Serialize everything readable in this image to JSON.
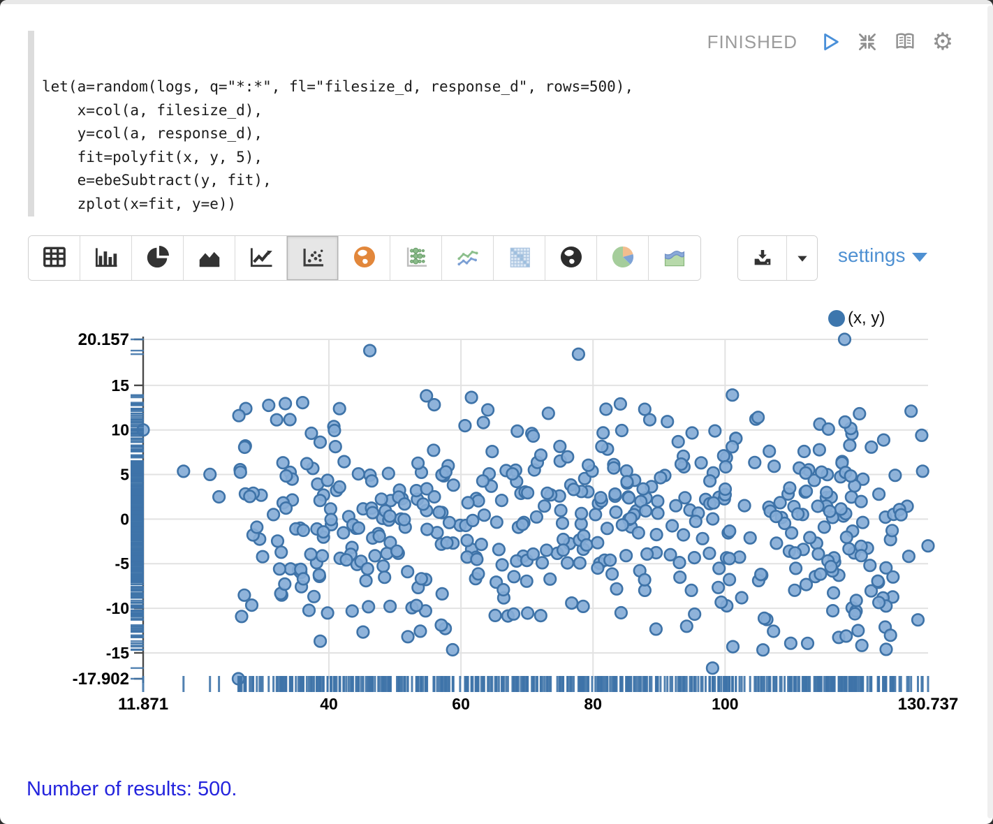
{
  "status": {
    "label": "FINISHED"
  },
  "header_icons": [
    {
      "name": "run-icon"
    },
    {
      "name": "collapse-icon"
    },
    {
      "name": "book-icon"
    },
    {
      "name": "gear-icon"
    }
  ],
  "code": {
    "text": "let(a=random(logs, q=\"*:*\", fl=\"filesize_d, response_d\", rows=500),\n    x=col(a, filesize_d),\n    y=col(a, response_d),\n    fit=polyfit(x, y, 5),\n    e=ebeSubtract(y, fit),\n    zplot(x=fit, y=e))"
  },
  "toolbar": {
    "chart_types": [
      {
        "name": "table",
        "selected": false
      },
      {
        "name": "bar",
        "selected": false
      },
      {
        "name": "pie",
        "selected": false
      },
      {
        "name": "area",
        "selected": false
      },
      {
        "name": "line",
        "selected": false
      },
      {
        "name": "scatter",
        "selected": true
      },
      {
        "name": "map-orange",
        "selected": false
      },
      {
        "name": "bubble",
        "selected": false
      },
      {
        "name": "multi-line",
        "selected": false
      },
      {
        "name": "heatmap",
        "selected": false
      },
      {
        "name": "globe-dark",
        "selected": false
      },
      {
        "name": "pie-colored",
        "selected": false
      },
      {
        "name": "area-colored",
        "selected": false
      }
    ],
    "settings_label": "settings"
  },
  "chart_data": {
    "type": "scatter",
    "title": "",
    "xlabel": "",
    "ylabel": "",
    "legend": [
      {
        "label": "(x, y)",
        "color": "#3d76ad"
      }
    ],
    "legend_position": "top-right",
    "grid": true,
    "rug": true,
    "point_count": 500,
    "xlim": [
      11.871,
      130.737
    ],
    "ylim": [
      -17.902,
      20.157
    ],
    "x_ticks": [
      {
        "v": 11.871,
        "label": "11.871",
        "bold": true,
        "grid": false
      },
      {
        "v": 40,
        "label": "40",
        "bold": false,
        "grid": true
      },
      {
        "v": 60,
        "label": "60",
        "bold": false,
        "grid": true
      },
      {
        "v": 80,
        "label": "80",
        "bold": false,
        "grid": true
      },
      {
        "v": 100,
        "label": "100",
        "bold": false,
        "grid": true
      },
      {
        "v": 130.737,
        "label": "130.737",
        "bold": true,
        "grid": false
      }
    ],
    "y_ticks": [
      {
        "v": 20.157,
        "label": "20.157",
        "bold": true,
        "grid": true
      },
      {
        "v": 15,
        "label": "15",
        "bold": false,
        "grid": true
      },
      {
        "v": 10,
        "label": "10",
        "bold": false,
        "grid": true
      },
      {
        "v": 5,
        "label": "5",
        "bold": false,
        "grid": true
      },
      {
        "v": 0,
        "label": "0",
        "bold": false,
        "grid": true
      },
      {
        "v": -5,
        "label": "-5",
        "bold": false,
        "grid": true
      },
      {
        "v": -10,
        "label": "-10",
        "bold": false,
        "grid": true
      },
      {
        "v": -15,
        "label": "-15",
        "bold": false,
        "grid": true
      },
      {
        "v": -17.902,
        "label": "-17.902",
        "bold": true,
        "grid": false
      }
    ],
    "colors": {
      "point_fill": "#85add7",
      "point_stroke": "#3e73a8",
      "rug": "#3e73a8",
      "grid": "#e2e2e2",
      "axis": "#4a4a4a",
      "label": "#000000"
    },
    "distribution": {
      "seed": 11,
      "x_main": [
        26.5,
        126.0
      ],
      "x_low_tail": [
        13.0,
        26.5
      ],
      "x_low_p": 0.012,
      "x_high_tail": [
        126.0,
        130.5
      ],
      "x_high_p": 0.012,
      "y_half_range": 15.5
    },
    "pinned_points": [
      [
        11.871,
        10.0
      ],
      [
        46.2,
        18.9
      ],
      [
        77.8,
        18.5
      ],
      [
        118.1,
        20.157
      ],
      [
        26.3,
        -17.902
      ],
      [
        98.1,
        -16.7
      ],
      [
        130.737,
        -3.0
      ],
      [
        129.2,
        -11.3
      ]
    ]
  },
  "footer": {
    "text": "Number of results: 500."
  }
}
